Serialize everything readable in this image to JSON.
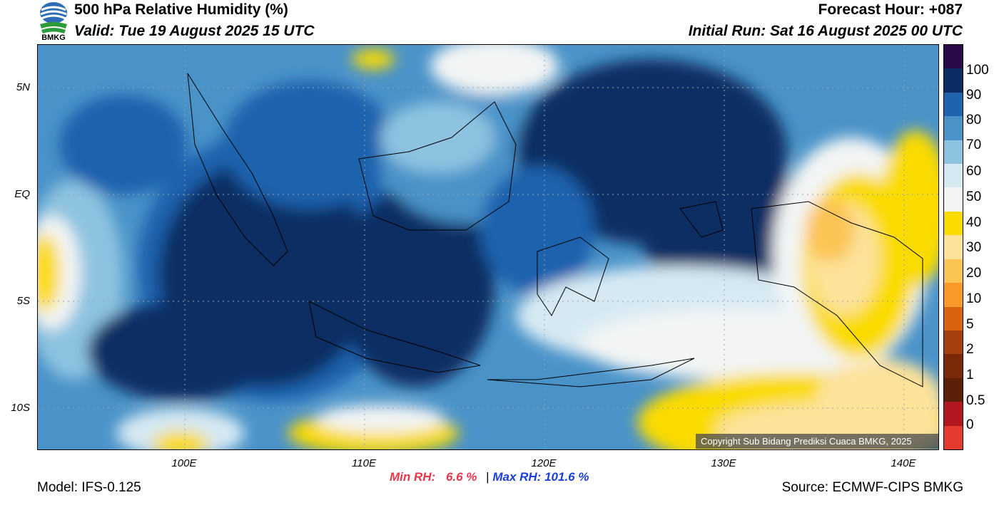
{
  "header": {
    "title": "500 hPa Relative Humidity (%)",
    "valid": "Valid: Tue 19 August 2025 15 UTC",
    "forecast_hour": "Forecast Hour: +087",
    "initial_run": "Initial Run: Sat 16 August 2025 00 UTC",
    "logo_text": "BMKG"
  },
  "map": {
    "lat_labels": [
      "5N",
      "EQ",
      "5S",
      "10S"
    ],
    "lon_labels": [
      "100E",
      "110E",
      "120E",
      "130E",
      "140E"
    ],
    "copyright": "Copyright Sub Bidang Prediksi Cuaca BMKG, 2025"
  },
  "colorbar": {
    "labels": [
      "100",
      "90",
      "80",
      "70",
      "60",
      "50",
      "40",
      "30",
      "20",
      "10",
      "5",
      "2",
      "1",
      "0.5",
      "0"
    ],
    "colors": [
      "#2b0a4a",
      "#0b2d63",
      "#1f62ad",
      "#4a93c9",
      "#8dc3e0",
      "#d6e9f3",
      "#f3f5f5",
      "#fadb00",
      "#fde29a",
      "#fcc455",
      "#f99a2b",
      "#d96410",
      "#a6410d",
      "#7a2a0a",
      "#5c2008",
      "#b0171f",
      "#e43a2f"
    ]
  },
  "stats": {
    "min_label": "Min RH:",
    "min_value": "6.6 %",
    "separator": "|",
    "max_label": "Max RH:",
    "max_value": "101.6 %"
  },
  "footer": {
    "model": "Model: IFS-0.125",
    "source": "Source: ECMWF-CIPS BMKG"
  }
}
